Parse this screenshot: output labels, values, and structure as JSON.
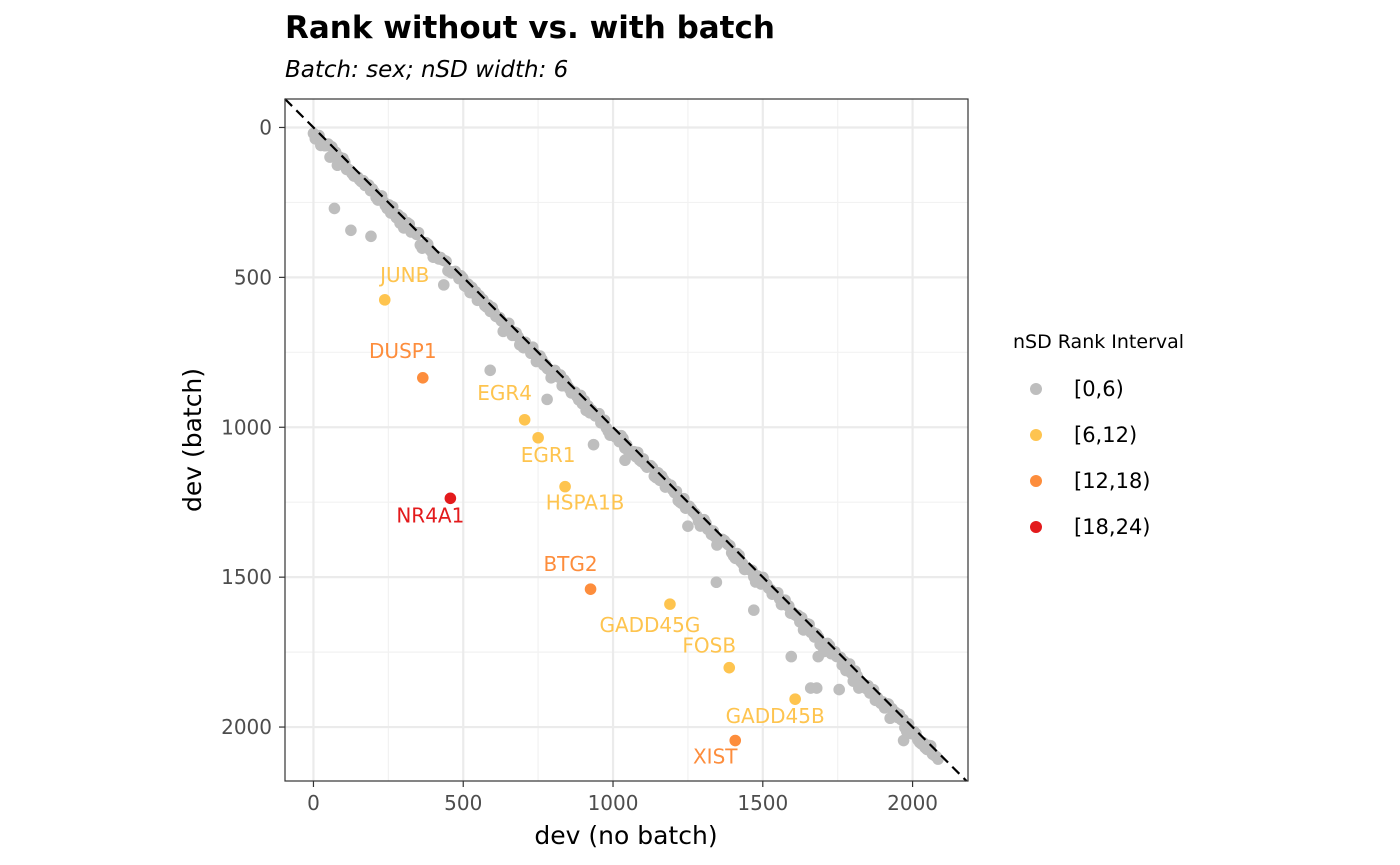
{
  "chart_data": {
    "type": "scatter",
    "title": "Rank without vs. with batch",
    "subtitle": "Batch: sex; nSD width: 6",
    "xlabel": "dev (no batch)",
    "ylabel": "dev (batch)",
    "xlim": [
      -95,
      2185
    ],
    "ylim": [
      -95,
      2180
    ],
    "y_reversed": true,
    "xticks": [
      0,
      500,
      1000,
      1500,
      2000
    ],
    "yticks": [
      0,
      500,
      1000,
      1500,
      2000
    ],
    "grid": true,
    "reference_line": {
      "type": "identity",
      "style": "dashed",
      "color": "#000000"
    },
    "legend": {
      "title": "nSD Rank Interval",
      "placement": "right",
      "entries": [
        {
          "label": "[0,6)",
          "color": "#bebebe"
        },
        {
          "label": "[6,12)",
          "color": "#fec44f"
        },
        {
          "label": "[12,18)",
          "color": "#fd8d3c"
        },
        {
          "label": "[18,24)",
          "color": "#e31a1c"
        }
      ]
    },
    "labeled_points": [
      {
        "label": "JUNB",
        "x": 238,
        "y": 575,
        "interval": "[6,12)"
      },
      {
        "label": "DUSP1",
        "x": 365,
        "y": 835,
        "interval": "[12,18)"
      },
      {
        "label": "EGR4",
        "x": 705,
        "y": 975,
        "interval": "[6,12)"
      },
      {
        "label": "EGR1",
        "x": 750,
        "y": 1035,
        "interval": "[6,12)"
      },
      {
        "label": "HSPA1B",
        "x": 840,
        "y": 1198,
        "interval": "[6,12)"
      },
      {
        "label": "NR4A1",
        "x": 457,
        "y": 1237,
        "interval": "[18,24)"
      },
      {
        "label": "BTG2",
        "x": 925,
        "y": 1540,
        "interval": "[12,18)"
      },
      {
        "label": "GADD45G",
        "x": 1190,
        "y": 1590,
        "interval": "[6,12)"
      },
      {
        "label": "FOSB",
        "x": 1388,
        "y": 1802,
        "interval": "[6,12)"
      },
      {
        "label": "GADD45B",
        "x": 1608,
        "y": 1907,
        "interval": "[6,12)"
      },
      {
        "label": "XIST",
        "x": 1408,
        "y": 2045,
        "interval": "[12,18)"
      }
    ],
    "outlier_points_0_6": [
      {
        "x": 70,
        "y": 270
      },
      {
        "x": 125,
        "y": 343
      },
      {
        "x": 192,
        "y": 363
      },
      {
        "x": 435,
        "y": 525
      },
      {
        "x": 590,
        "y": 810
      },
      {
        "x": 780,
        "y": 907
      },
      {
        "x": 935,
        "y": 1058
      },
      {
        "x": 1040,
        "y": 1110
      },
      {
        "x": 1250,
        "y": 1330
      },
      {
        "x": 1345,
        "y": 1517
      },
      {
        "x": 1470,
        "y": 1610
      },
      {
        "x": 1595,
        "y": 1765
      },
      {
        "x": 1660,
        "y": 1870
      },
      {
        "x": 1680,
        "y": 1870
      },
      {
        "x": 1685,
        "y": 1765
      },
      {
        "x": 1755,
        "y": 1875
      },
      {
        "x": 1970,
        "y": 2045
      }
    ],
    "diagonal_band_0_6": {
      "x_range": [
        0,
        2085
      ],
      "offset_range": [
        0,
        50
      ],
      "count": 340
    }
  }
}
